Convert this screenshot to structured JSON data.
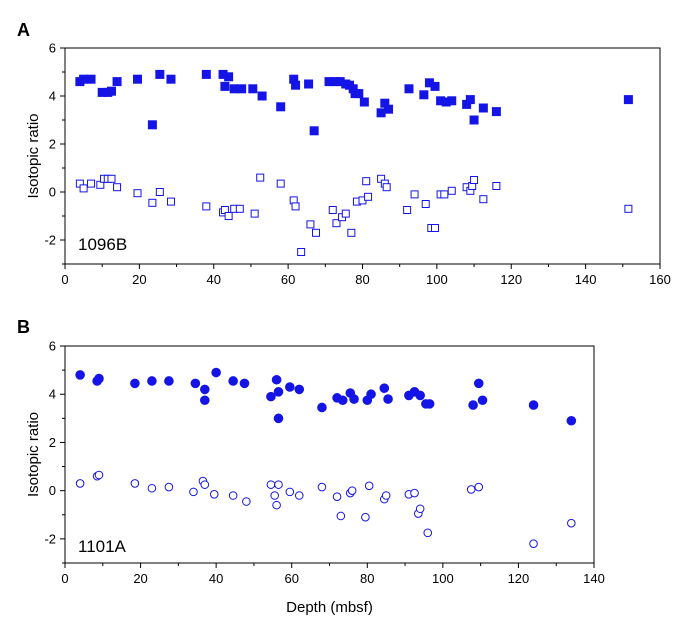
{
  "colors": {
    "series": "#1414e6",
    "axis": "#000000"
  },
  "chart_data": [
    {
      "type": "scatter",
      "panel_label": "A",
      "site_label": "1096B",
      "ylabel": "Isotopic ratio",
      "xlabel": "",
      "xlim": [
        0,
        160
      ],
      "ylim": [
        -3,
        6
      ],
      "x_ticks": [
        "0",
        "20",
        "40",
        "60",
        "80",
        "100",
        "120",
        "140",
        "160"
      ],
      "y_ticks": [
        "-2",
        "0",
        "2",
        "4",
        "6"
      ],
      "marker": "square",
      "series": [
        {
          "fill": "filled",
          "points": [
            [
              4,
              4.6
            ],
            [
              5,
              4.7
            ],
            [
              7,
              4.7
            ],
            [
              10,
              4.15
            ],
            [
              11.5,
              4.15
            ],
            [
              12.5,
              4.2
            ],
            [
              14,
              4.6
            ],
            [
              19.5,
              4.7
            ],
            [
              23.5,
              2.8
            ],
            [
              25.5,
              4.9
            ],
            [
              28.5,
              4.7
            ],
            [
              38,
              4.9
            ],
            [
              42.5,
              4.9
            ],
            [
              43,
              4.4
            ],
            [
              44,
              4.8
            ],
            [
              45.5,
              4.3
            ],
            [
              47.5,
              4.3
            ],
            [
              50.5,
              4.3
            ],
            [
              53,
              4.0
            ],
            [
              58,
              3.55
            ],
            [
              61.5,
              4.7
            ],
            [
              62,
              4.45
            ],
            [
              65.5,
              4.5
            ],
            [
              67,
              2.55
            ],
            [
              71,
              4.6
            ],
            [
              72.5,
              4.6
            ],
            [
              74,
              4.6
            ],
            [
              75.5,
              4.5
            ],
            [
              76.5,
              4.45
            ],
            [
              77.5,
              4.3
            ],
            [
              78,
              4.1
            ],
            [
              79,
              4.1
            ],
            [
              80.5,
              3.75
            ],
            [
              85,
              3.3
            ],
            [
              86,
              3.7
            ],
            [
              87,
              3.45
            ],
            [
              92.5,
              4.3
            ],
            [
              96.5,
              4.05
            ],
            [
              98,
              4.55
            ],
            [
              99.5,
              4.4
            ],
            [
              101,
              3.8
            ],
            [
              102.5,
              3.75
            ],
            [
              104,
              3.8
            ],
            [
              108,
              3.65
            ],
            [
              109,
              3.85
            ],
            [
              110,
              3.0
            ],
            [
              112.5,
              3.5
            ],
            [
              116,
              3.35
            ],
            [
              151.5,
              3.85
            ]
          ]
        },
        {
          "fill": "open",
          "points": [
            [
              4,
              0.35
            ],
            [
              5,
              0.15
            ],
            [
              7,
              0.35
            ],
            [
              9.5,
              0.3
            ],
            [
              10.5,
              0.55
            ],
            [
              11.5,
              0.55
            ],
            [
              12.5,
              0.55
            ],
            [
              14,
              0.2
            ],
            [
              19.5,
              -0.05
            ],
            [
              23.5,
              -0.45
            ],
            [
              25.5,
              0.0
            ],
            [
              28.5,
              -0.4
            ],
            [
              38,
              -0.6
            ],
            [
              42.5,
              -0.85
            ],
            [
              43,
              -0.75
            ],
            [
              44,
              -1.0
            ],
            [
              45.5,
              -0.7
            ],
            [
              47,
              -0.7
            ],
            [
              51,
              -0.9
            ],
            [
              52.5,
              0.6
            ],
            [
              58,
              0.35
            ],
            [
              61.5,
              -0.35
            ],
            [
              62,
              -0.6
            ],
            [
              63.5,
              -2.5
            ],
            [
              66,
              -1.35
            ],
            [
              67.5,
              -1.7
            ],
            [
              72,
              -0.75
            ],
            [
              73,
              -1.3
            ],
            [
              74.5,
              -1.05
            ],
            [
              75.5,
              -0.9
            ],
            [
              77,
              -1.7
            ],
            [
              78.5,
              -0.4
            ],
            [
              80,
              -0.35
            ],
            [
              81,
              0.45
            ],
            [
              81.5,
              -0.2
            ],
            [
              85,
              0.55
            ],
            [
              86,
              0.35
            ],
            [
              86.5,
              0.2
            ],
            [
              92,
              -0.75
            ],
            [
              94,
              -0.1
            ],
            [
              97,
              -0.5
            ],
            [
              98.5,
              -1.5
            ],
            [
              99.5,
              -1.5
            ],
            [
              101,
              -0.1
            ],
            [
              102,
              -0.1
            ],
            [
              104,
              0.05
            ],
            [
              108,
              0.2
            ],
            [
              109,
              0.05
            ],
            [
              109.5,
              0.25
            ],
            [
              110,
              0.5
            ],
            [
              112.5,
              -0.3
            ],
            [
              116,
              0.25
            ],
            [
              151.5,
              -0.7
            ]
          ]
        }
      ]
    },
    {
      "type": "scatter",
      "panel_label": "B",
      "site_label": "1101A",
      "ylabel": "Isotopic ratio",
      "xlabel": "Depth (mbsf)",
      "xlim": [
        0,
        140
      ],
      "ylim": [
        -3,
        6
      ],
      "x_ticks": [
        "0",
        "20",
        "40",
        "60",
        "80",
        "100",
        "120",
        "140"
      ],
      "y_ticks": [
        "-2",
        "0",
        "2",
        "4",
        "6"
      ],
      "marker": "circle",
      "series": [
        {
          "fill": "filled",
          "points": [
            [
              4,
              4.8
            ],
            [
              8.5,
              4.55
            ],
            [
              9,
              4.65
            ],
            [
              18.5,
              4.45
            ],
            [
              23,
              4.55
            ],
            [
              27.5,
              4.55
            ],
            [
              34.5,
              4.45
            ],
            [
              37,
              3.75
            ],
            [
              37,
              4.2
            ],
            [
              40,
              4.9
            ],
            [
              44.5,
              4.55
            ],
            [
              47.5,
              4.45
            ],
            [
              54.5,
              3.9
            ],
            [
              56,
              4.6
            ],
            [
              56.5,
              3.0
            ],
            [
              56.5,
              4.1
            ],
            [
              59.5,
              4.3
            ],
            [
              62,
              4.2
            ],
            [
              68,
              3.45
            ],
            [
              72,
              3.85
            ],
            [
              73.5,
              3.75
            ],
            [
              75.5,
              4.05
            ],
            [
              76.5,
              3.8
            ],
            [
              80,
              3.75
            ],
            [
              81,
              4.0
            ],
            [
              84.5,
              4.25
            ],
            [
              85.5,
              3.8
            ],
            [
              91,
              3.95
            ],
            [
              92.5,
              4.1
            ],
            [
              94,
              3.95
            ],
            [
              95.5,
              3.6
            ],
            [
              96.5,
              3.6
            ],
            [
              108,
              3.55
            ],
            [
              109.5,
              4.45
            ],
            [
              110.5,
              3.75
            ],
            [
              124,
              3.55
            ],
            [
              134,
              2.9
            ]
          ]
        },
        {
          "fill": "open",
          "points": [
            [
              4,
              0.3
            ],
            [
              8.5,
              0.6
            ],
            [
              9,
              0.65
            ],
            [
              18.5,
              0.3
            ],
            [
              23,
              0.1
            ],
            [
              27.5,
              0.15
            ],
            [
              34,
              -0.05
            ],
            [
              36.5,
              0.4
            ],
            [
              37,
              0.25
            ],
            [
              39.5,
              -0.15
            ],
            [
              44.5,
              -0.2
            ],
            [
              48,
              -0.45
            ],
            [
              54.5,
              0.25
            ],
            [
              55.5,
              -0.2
            ],
            [
              56,
              -0.6
            ],
            [
              56.5,
              0.25
            ],
            [
              59.5,
              -0.05
            ],
            [
              62,
              -0.2
            ],
            [
              68,
              0.15
            ],
            [
              72,
              -0.25
            ],
            [
              73,
              -1.05
            ],
            [
              75.5,
              -0.1
            ],
            [
              76,
              0.0
            ],
            [
              79.5,
              -1.1
            ],
            [
              80.5,
              0.2
            ],
            [
              84.5,
              -0.35
            ],
            [
              85,
              -0.2
            ],
            [
              91,
              -0.15
            ],
            [
              92.5,
              -0.1
            ],
            [
              93.5,
              -0.95
            ],
            [
              94,
              -0.75
            ],
            [
              96,
              -1.75
            ],
            [
              107.5,
              0.05
            ],
            [
              109.5,
              0.15
            ],
            [
              124,
              -2.2
            ],
            [
              134,
              -1.35
            ]
          ]
        }
      ]
    }
  ]
}
